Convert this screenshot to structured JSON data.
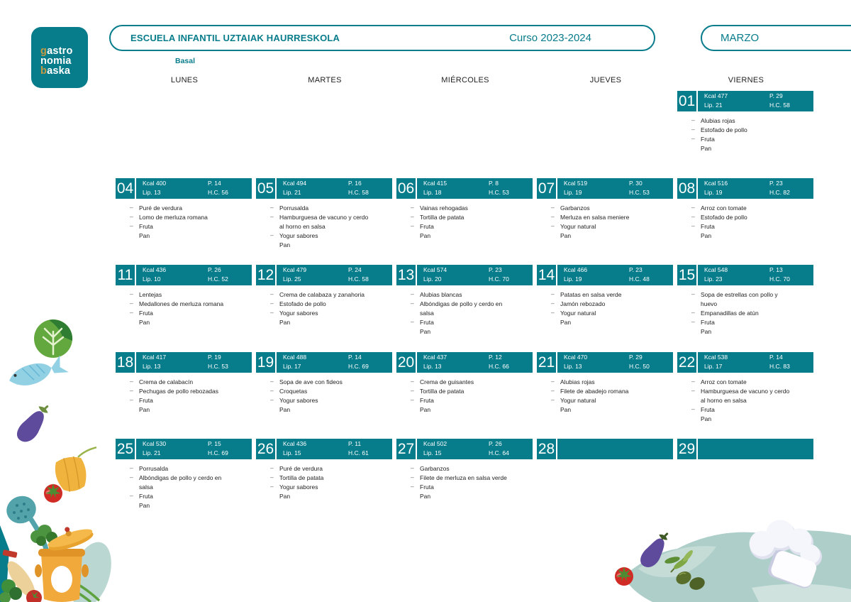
{
  "logo": {
    "l1a": "g",
    "l1b": "astro",
    "l2": "nomia",
    "l3a": "b",
    "l3b": "aska"
  },
  "header": {
    "school": "ESCUELA INFANTIL UZTAIAK HAURRESKOLA",
    "course": "Curso 2023-2024",
    "month": "MARZO",
    "diet_label": "Basal"
  },
  "colors": {
    "teal": "#077c8a",
    "gold": "#c49b44"
  },
  "stat_labels": {
    "kcal": "Kcal",
    "lip": "Lip.",
    "p": "P.",
    "hc": "H.C."
  },
  "weekdays": [
    "LUNES",
    "MARTES",
    "MIÉRCOLES",
    "JUEVES",
    "VIERNES"
  ],
  "calendar": {
    "rows": [
      [
        null,
        null,
        null,
        null,
        {
          "day": "01",
          "kcal": 477,
          "lip": 21,
          "p": 29,
          "hc": 58,
          "items": [
            {
              "label": "Alubias rojas",
              "bullet": true
            },
            {
              "label": "Estofado de pollo",
              "bullet": true
            },
            {
              "label": "Fruta",
              "bullet": true
            },
            {
              "label": "Pan",
              "bullet": false
            }
          ]
        }
      ],
      [
        {
          "day": "04",
          "kcal": 400,
          "lip": 13,
          "p": 14,
          "hc": 56,
          "items": [
            {
              "label": "Puré de verdura",
              "bullet": true
            },
            {
              "label": "Lomo de merluza romana",
              "bullet": true
            },
            {
              "label": "Fruta",
              "bullet": true
            },
            {
              "label": "Pan",
              "bullet": false
            }
          ]
        },
        {
          "day": "05",
          "kcal": 494,
          "lip": 21,
          "p": 16,
          "hc": 58,
          "items": [
            {
              "label": "Porrusalda",
              "bullet": true
            },
            {
              "label": "Hamburguesa de vacuno y cerdo al horno en salsa",
              "bullet": true
            },
            {
              "label": "Yogur sabores",
              "bullet": true
            },
            {
              "label": "Pan",
              "bullet": false
            }
          ]
        },
        {
          "day": "06",
          "kcal": 415,
          "lip": 18,
          "p": 8,
          "hc": 53,
          "items": [
            {
              "label": "Vainas rehogadas",
              "bullet": true
            },
            {
              "label": "Tortilla de patata",
              "bullet": true
            },
            {
              "label": "Fruta",
              "bullet": true
            },
            {
              "label": "Pan",
              "bullet": false
            }
          ]
        },
        {
          "day": "07",
          "kcal": 519,
          "lip": 19,
          "p": 30,
          "hc": 53,
          "items": [
            {
              "label": "Garbanzos",
              "bullet": true
            },
            {
              "label": "Merluza en salsa meniere",
              "bullet": true
            },
            {
              "label": "Yogur natural",
              "bullet": true
            },
            {
              "label": "Pan",
              "bullet": false
            }
          ]
        },
        {
          "day": "08",
          "kcal": 516,
          "lip": 19,
          "p": 23,
          "hc": 82,
          "items": [
            {
              "label": "Arroz con tomate",
              "bullet": true
            },
            {
              "label": "Estofado de pollo",
              "bullet": true
            },
            {
              "label": "Fruta",
              "bullet": true
            },
            {
              "label": "Pan",
              "bullet": false
            }
          ]
        }
      ],
      [
        {
          "day": "11",
          "kcal": 436,
          "lip": 10,
          "p": 26,
          "hc": 52,
          "items": [
            {
              "label": "Lentejas",
              "bullet": true
            },
            {
              "label": "Medallones de merluza romana",
              "bullet": true
            },
            {
              "label": "Fruta",
              "bullet": true
            },
            {
              "label": "Pan",
              "bullet": false
            }
          ]
        },
        {
          "day": "12",
          "kcal": 479,
          "lip": 25,
          "p": 24,
          "hc": 58,
          "items": [
            {
              "label": "Crema de calabaza y zanahoria",
              "bullet": true
            },
            {
              "label": "Estofado de pollo",
              "bullet": true
            },
            {
              "label": "Yogur sabores",
              "bullet": true
            },
            {
              "label": "Pan",
              "bullet": false
            }
          ]
        },
        {
          "day": "13",
          "kcal": 574,
          "lip": 20,
          "p": 23,
          "hc": 70,
          "items": [
            {
              "label": "Alubias blancas",
              "bullet": true
            },
            {
              "label": "Albóndigas de pollo y cerdo en salsa",
              "bullet": true
            },
            {
              "label": "Fruta",
              "bullet": true
            },
            {
              "label": "Pan",
              "bullet": false
            }
          ]
        },
        {
          "day": "14",
          "kcal": 466,
          "lip": 19,
          "p": 23,
          "hc": 48,
          "items": [
            {
              "label": "Patatas en salsa verde",
              "bullet": true
            },
            {
              "label": "Jamón rebozado",
              "bullet": true
            },
            {
              "label": "Yogur natural",
              "bullet": true
            },
            {
              "label": "Pan",
              "bullet": false
            }
          ]
        },
        {
          "day": "15",
          "kcal": 548,
          "lip": 23,
          "p": 13,
          "hc": 70,
          "items": [
            {
              "label": "Sopa de estrellas con pollo y huevo",
              "bullet": true
            },
            {
              "label": "Empanadillas de atún",
              "bullet": true
            },
            {
              "label": "Fruta",
              "bullet": true
            },
            {
              "label": "Pan",
              "bullet": false
            }
          ]
        }
      ],
      [
        {
          "day": "18",
          "kcal": 417,
          "lip": 13,
          "p": 19,
          "hc": 53,
          "items": [
            {
              "label": "Crema de calabacín",
              "bullet": true
            },
            {
              "label": "Pechugas de pollo rebozadas",
              "bullet": true
            },
            {
              "label": "Fruta",
              "bullet": true
            },
            {
              "label": "Pan",
              "bullet": false
            }
          ]
        },
        {
          "day": "19",
          "kcal": 488,
          "lip": 17,
          "p": 14,
          "hc": 69,
          "items": [
            {
              "label": "Sopa de ave con fideos",
              "bullet": true
            },
            {
              "label": "Croquetas",
              "bullet": true
            },
            {
              "label": "Yogur sabores",
              "bullet": true
            },
            {
              "label": "Pan",
              "bullet": false
            }
          ]
        },
        {
          "day": "20",
          "kcal": 437,
          "lip": 13,
          "p": 12,
          "hc": 66,
          "items": [
            {
              "label": "Crema de guisantes",
              "bullet": true
            },
            {
              "label": "Tortilla de patata",
              "bullet": true
            },
            {
              "label": "Fruta",
              "bullet": true
            },
            {
              "label": "Pan",
              "bullet": false
            }
          ]
        },
        {
          "day": "21",
          "kcal": 470,
          "lip": 13,
          "p": 29,
          "hc": 50,
          "items": [
            {
              "label": "Alubias rojas",
              "bullet": true
            },
            {
              "label": "Filete de abadejo romana",
              "bullet": true
            },
            {
              "label": "Yogur natural",
              "bullet": true
            },
            {
              "label": "Pan",
              "bullet": false
            }
          ]
        },
        {
          "day": "22",
          "kcal": 538,
          "lip": 17,
          "p": 14,
          "hc": 83,
          "items": [
            {
              "label": "Arroz con tomate",
              "bullet": true
            },
            {
              "label": "Hamburguesa de vacuno y cerdo al horno en salsa",
              "bullet": true
            },
            {
              "label": "Fruta",
              "bullet": true
            },
            {
              "label": "Pan",
              "bullet": false
            }
          ]
        }
      ],
      [
        {
          "day": "25",
          "kcal": 530,
          "lip": 21,
          "p": 15,
          "hc": 69,
          "items": [
            {
              "label": "Porrusalda",
              "bullet": true
            },
            {
              "label": "Albóndigas de pollo y cerdo en salsa",
              "bullet": true
            },
            {
              "label": "Fruta",
              "bullet": true
            },
            {
              "label": "Pan",
              "bullet": false
            }
          ]
        },
        {
          "day": "26",
          "kcal": 436,
          "lip": 15,
          "p": 11,
          "hc": 61,
          "items": [
            {
              "label": "Puré de verdura",
              "bullet": true
            },
            {
              "label": "Tortilla de patata",
              "bullet": true
            },
            {
              "label": "Yogur sabores",
              "bullet": true
            },
            {
              "label": "Pan",
              "bullet": false
            }
          ]
        },
        {
          "day": "27",
          "kcal": 502,
          "lip": 15,
          "p": 26,
          "hc": 64,
          "items": [
            {
              "label": "Garbanzos",
              "bullet": true
            },
            {
              "label": "Filete de merluza en salsa verde",
              "bullet": true
            },
            {
              "label": "Fruta",
              "bullet": true
            },
            {
              "label": "Pan",
              "bullet": false
            }
          ]
        },
        {
          "day": "28",
          "kcal": null,
          "lip": null,
          "p": null,
          "hc": null,
          "items": []
        },
        {
          "day": "29",
          "kcal": null,
          "lip": null,
          "p": null,
          "hc": null,
          "items": []
        }
      ]
    ]
  }
}
